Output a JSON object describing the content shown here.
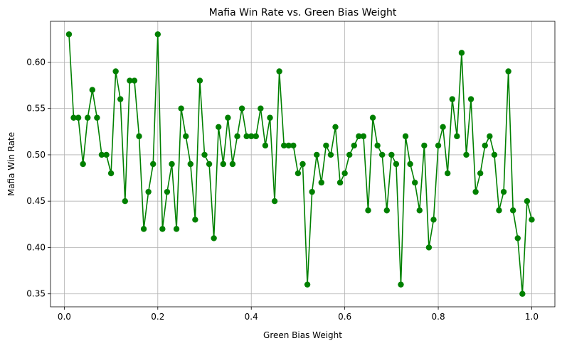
{
  "chart_data": {
    "type": "line",
    "title": "Mafia Win Rate vs. Green Bias Weight",
    "xlabel": "Green Bias Weight",
    "ylabel": "Mafia Win Rate",
    "xlim": [
      -0.0295,
      1.0495
    ],
    "ylim": [
      0.336,
      0.644
    ],
    "xticks": [
      0.0,
      0.2,
      0.4,
      0.6,
      0.8,
      1.0
    ],
    "xtick_labels": [
      "0.0",
      "0.2",
      "0.4",
      "0.6",
      "0.8",
      "1.0"
    ],
    "yticks": [
      0.35,
      0.4,
      0.45,
      0.5,
      0.55,
      0.6
    ],
    "ytick_labels": [
      "0.35",
      "0.40",
      "0.45",
      "0.50",
      "0.55",
      "0.60"
    ],
    "grid": true,
    "line_color": "#008000",
    "marker": "circle",
    "x": [
      0.01,
      0.02,
      0.03,
      0.04,
      0.05,
      0.06,
      0.07,
      0.08,
      0.09,
      0.1,
      0.11,
      0.12,
      0.13,
      0.14,
      0.15,
      0.16,
      0.17,
      0.18,
      0.19,
      0.2,
      0.21,
      0.22,
      0.23,
      0.24,
      0.25,
      0.26,
      0.27,
      0.28,
      0.29,
      0.3,
      0.31,
      0.32,
      0.33,
      0.34,
      0.35,
      0.36,
      0.37,
      0.38,
      0.39,
      0.4,
      0.41,
      0.42,
      0.43,
      0.44,
      0.45,
      0.46,
      0.47,
      0.48,
      0.49,
      0.5,
      0.51,
      0.52,
      0.53,
      0.54,
      0.55,
      0.56,
      0.57,
      0.58,
      0.59,
      0.6,
      0.61,
      0.62,
      0.63,
      0.64,
      0.65,
      0.66,
      0.67,
      0.68,
      0.69,
      0.7,
      0.71,
      0.72,
      0.73,
      0.74,
      0.75,
      0.76,
      0.77,
      0.78,
      0.79,
      0.8,
      0.81,
      0.82,
      0.83,
      0.84,
      0.85,
      0.86,
      0.87,
      0.88,
      0.89,
      0.9,
      0.91,
      0.92,
      0.93,
      0.94,
      0.95,
      0.96,
      0.97,
      0.98,
      0.99,
      1.0
    ],
    "y": [
      0.63,
      0.54,
      0.54,
      0.49,
      0.54,
      0.57,
      0.54,
      0.5,
      0.5,
      0.48,
      0.59,
      0.56,
      0.45,
      0.58,
      0.58,
      0.52,
      0.42,
      0.46,
      0.49,
      0.63,
      0.42,
      0.46,
      0.49,
      0.42,
      0.55,
      0.52,
      0.49,
      0.43,
      0.58,
      0.5,
      0.49,
      0.41,
      0.53,
      0.49,
      0.54,
      0.49,
      0.52,
      0.55,
      0.52,
      0.52,
      0.52,
      0.55,
      0.51,
      0.54,
      0.45,
      0.59,
      0.51,
      0.51,
      0.51,
      0.48,
      0.49,
      0.36,
      0.46,
      0.5,
      0.47,
      0.51,
      0.5,
      0.53,
      0.47,
      0.48,
      0.5,
      0.51,
      0.52,
      0.52,
      0.44,
      0.54,
      0.51,
      0.5,
      0.44,
      0.5,
      0.49,
      0.36,
      0.52,
      0.49,
      0.47,
      0.44,
      0.51,
      0.4,
      0.43,
      0.51,
      0.53,
      0.48,
      0.56,
      0.52,
      0.61,
      0.5,
      0.56,
      0.46,
      0.48,
      0.51,
      0.52,
      0.5,
      0.44,
      0.46,
      0.59,
      0.44,
      0.41,
      0.35,
      0.45,
      0.43
    ]
  }
}
